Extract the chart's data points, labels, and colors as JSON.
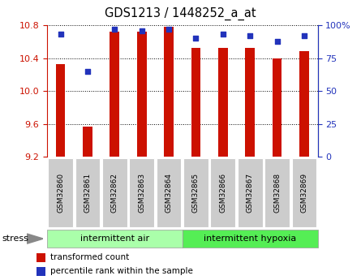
{
  "title": "GDS1213 / 1448252_a_at",
  "samples": [
    "GSM32860",
    "GSM32861",
    "GSM32862",
    "GSM32863",
    "GSM32864",
    "GSM32865",
    "GSM32866",
    "GSM32867",
    "GSM32868",
    "GSM32869"
  ],
  "transformed_count": [
    10.33,
    9.57,
    10.72,
    10.72,
    10.78,
    10.52,
    10.52,
    10.52,
    10.4,
    10.48
  ],
  "percentile_rank": [
    93,
    65,
    97,
    96,
    97,
    90,
    93,
    92,
    88,
    92
  ],
  "ylim_left": [
    9.2,
    10.8
  ],
  "ylim_right": [
    0,
    100
  ],
  "yticks_left": [
    9.2,
    9.6,
    10.0,
    10.4,
    10.8
  ],
  "yticks_right": [
    0,
    25,
    50,
    75,
    100
  ],
  "ytick_labels_right": [
    "0",
    "25",
    "50",
    "75",
    "100%"
  ],
  "group1_label": "intermittent air",
  "group1_n": 5,
  "group1_color": "#aaffaa",
  "group2_label": "intermittent hypoxia",
  "group2_n": 5,
  "group2_color": "#55ee55",
  "stress_label": "stress",
  "bar_color": "#cc1100",
  "dot_color": "#2233bb",
  "bar_width": 0.35,
  "background_color": "#ffffff",
  "grid_color": "#000000",
  "tick_color_left": "#cc1100",
  "tick_color_right": "#2233bb",
  "legend_red_label": "transformed count",
  "legend_blue_label": "percentile rank within the sample",
  "sample_box_color": "#cccccc",
  "n_samples": 10
}
